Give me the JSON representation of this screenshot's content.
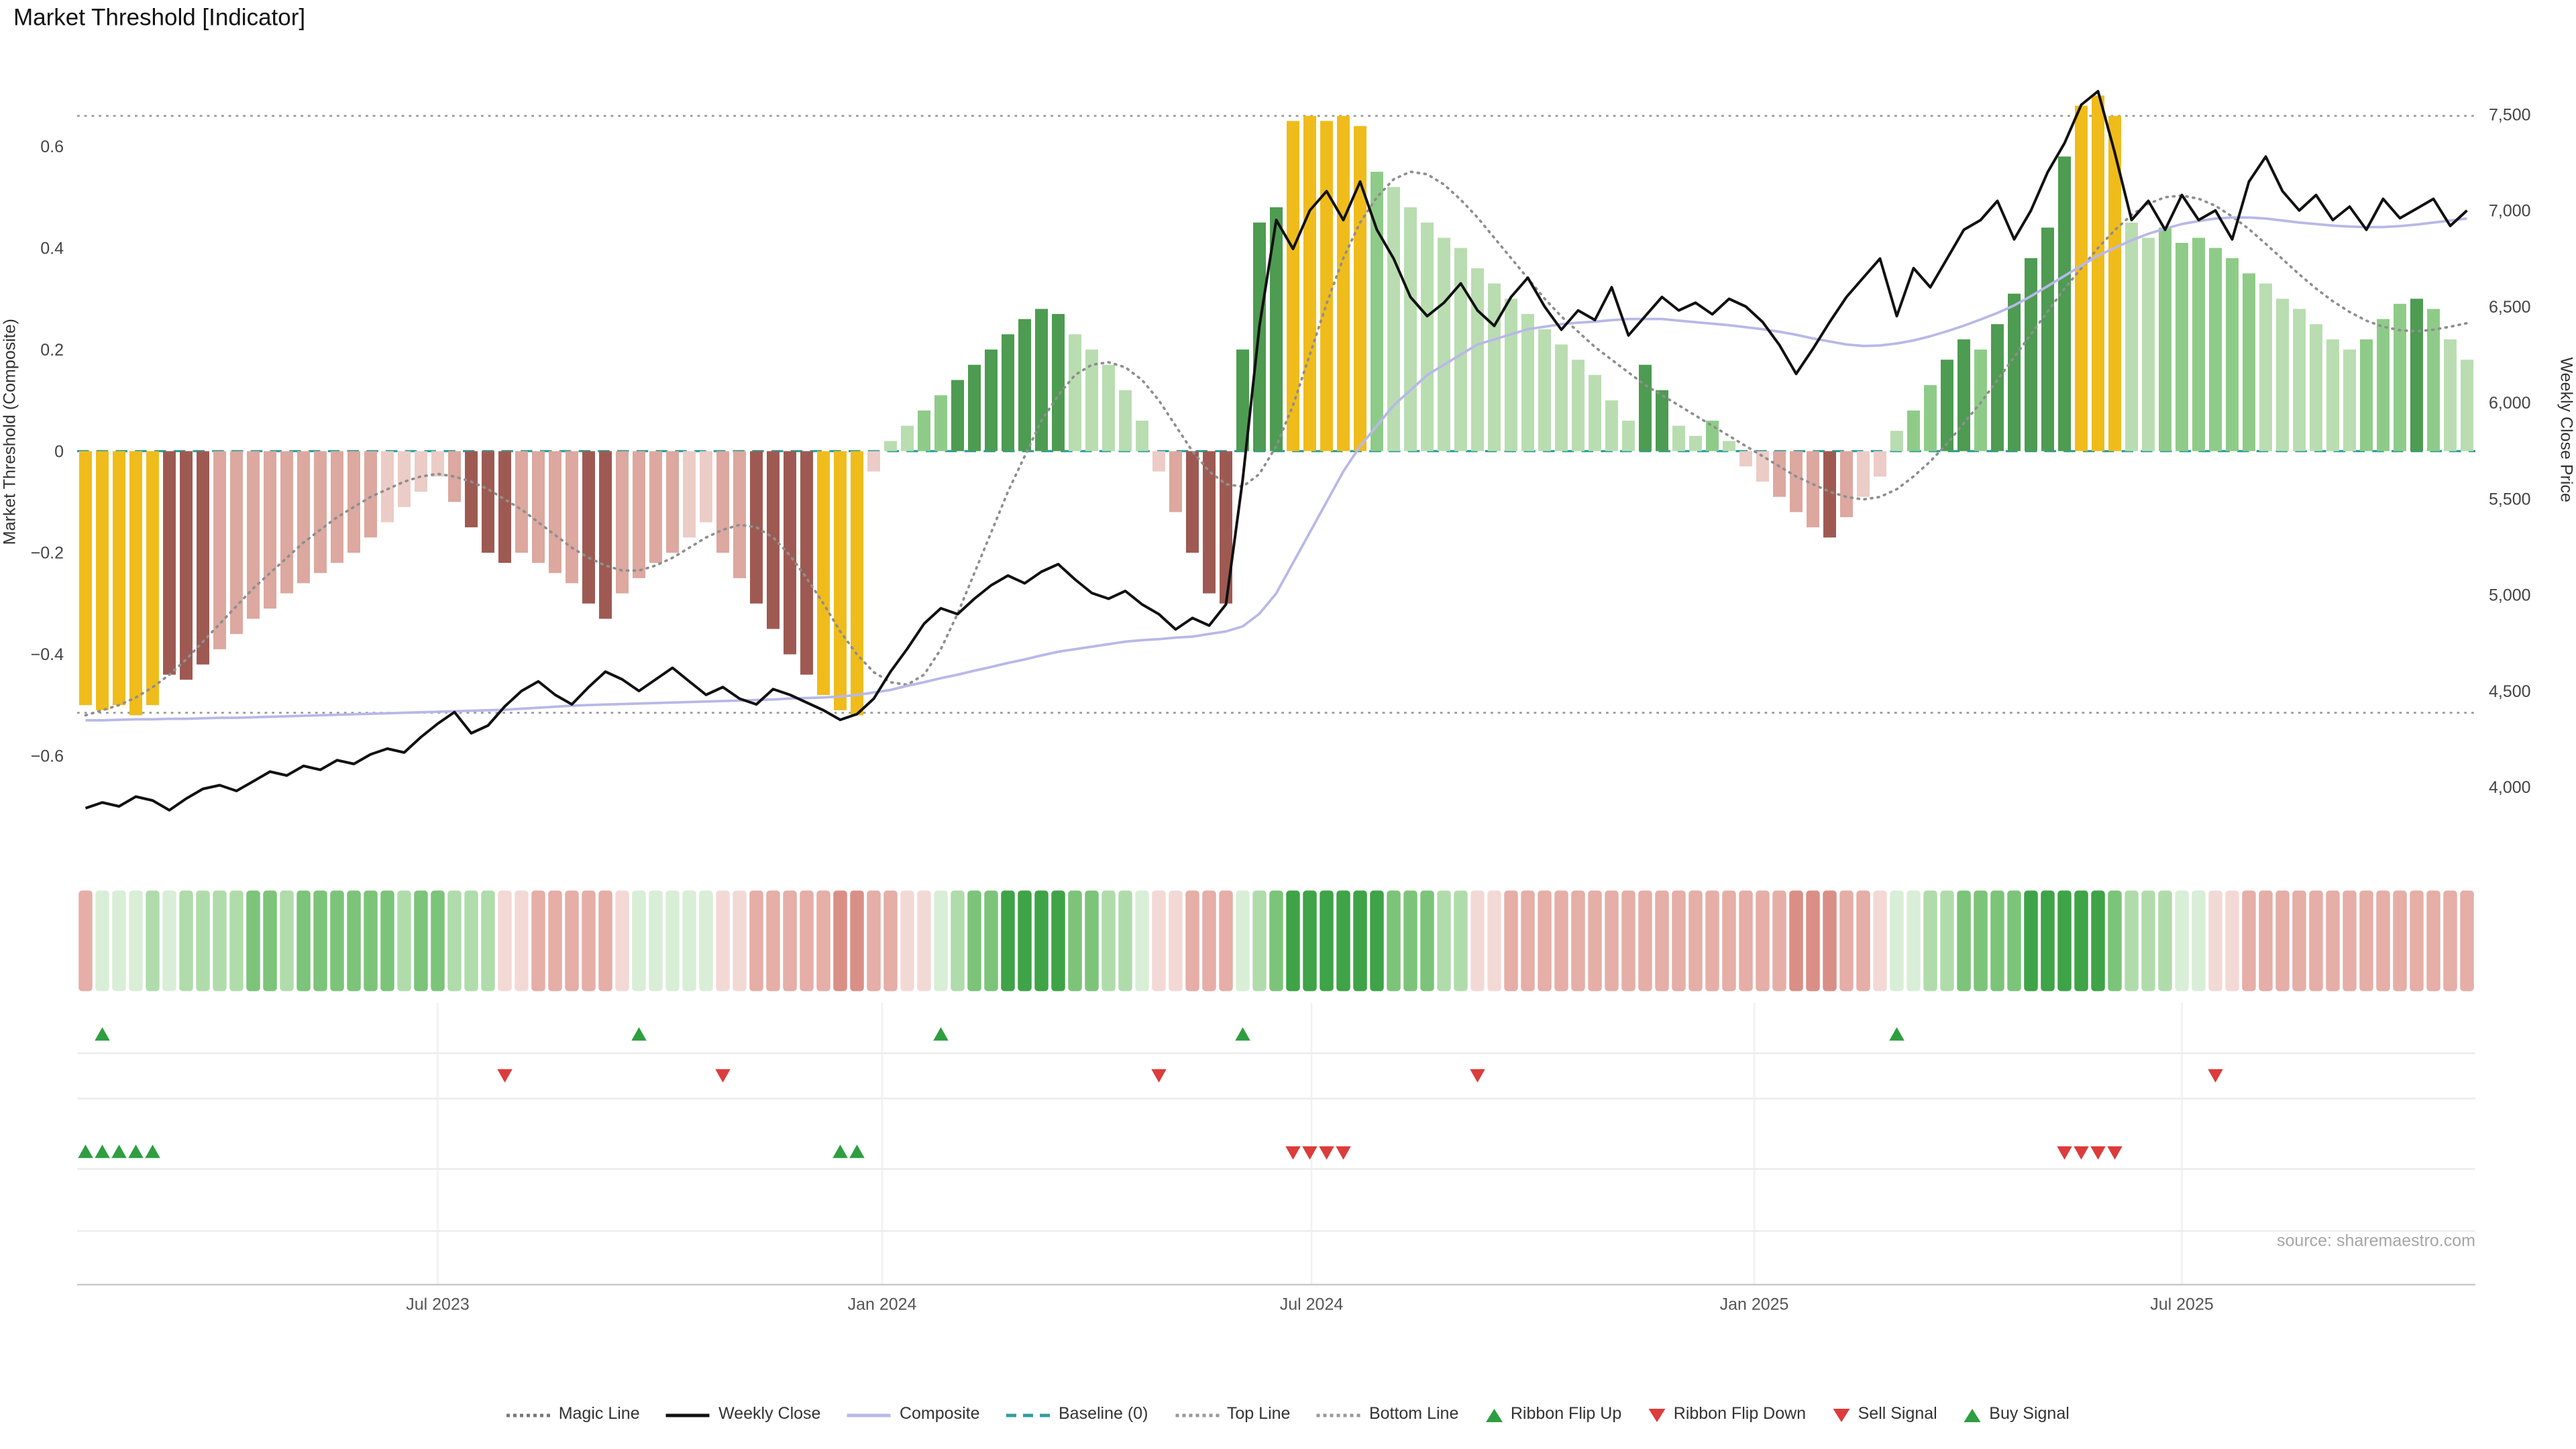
{
  "title": "Market Threshold [Indicator]",
  "source": "source: sharemaestro.com",
  "palette": {
    "bar": {
      "Y": "#f0bc1c",
      "DR": "#9e5a52",
      "MP": "#dca89f",
      "LP": "#ecccc6",
      "LG": "#b9ddb1",
      "MG": "#8fcb88",
      "DG": "#4e9b52"
    },
    "ribbon": {
      "p1": "#f3d9d5",
      "p2": "#e5aea7",
      "p3": "#d98f86",
      "g1": "#d9eed6",
      "g2": "#b0dcab",
      "g3": "#7cc47a",
      "g4": "#3fa347"
    },
    "lines": {
      "weekly_close": "#111111",
      "composite": "#b8b8e8",
      "magic": "#8f8f8f",
      "baseline": "#2f9e9e",
      "top_bottom": "#9a9a9a"
    },
    "signals": {
      "up": "#2e9e40",
      "down": "#dc3c3c"
    }
  },
  "legend": {
    "items": [
      {
        "label": "Magic Line",
        "glyph": "dotted",
        "color": "#777777"
      },
      {
        "label": "Weekly Close",
        "glyph": "solid",
        "color": "#111111"
      },
      {
        "label": "Composite",
        "glyph": "solid",
        "color": "#b8b8e8"
      },
      {
        "label": "Baseline (0)",
        "glyph": "dashed",
        "color": "#2f9e9e"
      },
      {
        "label": "Top Line",
        "glyph": "dotted",
        "color": "#999999"
      },
      {
        "label": "Bottom Line",
        "glyph": "dotted",
        "color": "#999999"
      },
      {
        "label": "Ribbon Flip Up",
        "glyph": "tri-up",
        "color": "#2e9e40"
      },
      {
        "label": "Ribbon Flip Down",
        "glyph": "tri-down",
        "color": "#dc3c3c"
      },
      {
        "label": "Sell Signal",
        "glyph": "tri-down",
        "color": "#dc3c3c"
      },
      {
        "label": "Buy Signal",
        "glyph": "tri-up",
        "color": "#2e9e40"
      }
    ]
  },
  "chart_data": {
    "type": "bar+line",
    "weeks": 143,
    "left_axis": {
      "label": "Market Threshold (Composite)",
      "tick_values": [
        0.6,
        0.4,
        0.2,
        0,
        -0.2,
        -0.4,
        -0.6
      ],
      "tick_labels": [
        "0.6",
        "0.4",
        "0.2",
        "0",
        "−0.2",
        "−0.4",
        "−0.6"
      ],
      "range": [
        -0.72,
        0.74
      ]
    },
    "right_axis": {
      "label": "Weekly Close Price",
      "tick_values": [
        7500,
        7000,
        6500,
        6000,
        5500,
        5000,
        4500,
        4000
      ],
      "tick_labels": [
        "7,500",
        "7,000",
        "6,500",
        "6,000",
        "5,500",
        "5,000",
        "4,500",
        "4,000"
      ]
    },
    "x_axis": {
      "tick_labels": [
        "Jul 2023",
        "Jan 2024",
        "Jul 2024",
        "Jan 2025",
        "Jul 2025"
      ],
      "tick_weeks": [
        21.5,
        48,
        73.6,
        100,
        125.5
      ]
    },
    "top_line": 0.66,
    "bottom_line": -0.515,
    "baseline": 0,
    "bars": [
      -0.5,
      -0.51,
      -0.5,
      -0.52,
      -0.5,
      -0.44,
      -0.45,
      -0.42,
      -0.39,
      -0.36,
      -0.33,
      -0.31,
      -0.28,
      -0.26,
      -0.24,
      -0.22,
      -0.2,
      -0.17,
      -0.14,
      -0.11,
      -0.08,
      -0.05,
      -0.1,
      -0.15,
      -0.2,
      -0.22,
      -0.2,
      -0.22,
      -0.24,
      -0.26,
      -0.3,
      -0.33,
      -0.28,
      -0.25,
      -0.22,
      -0.2,
      -0.17,
      -0.14,
      -0.2,
      -0.25,
      -0.3,
      -0.35,
      -0.4,
      -0.44,
      -0.48,
      -0.51,
      -0.52,
      -0.04,
      0.02,
      0.05,
      0.08,
      0.11,
      0.14,
      0.17,
      0.2,
      0.23,
      0.26,
      0.28,
      0.27,
      0.23,
      0.2,
      0.17,
      0.12,
      0.06,
      -0.04,
      -0.12,
      -0.2,
      -0.28,
      -0.3,
      0.2,
      0.45,
      0.48,
      0.65,
      0.66,
      0.65,
      0.66,
      0.64,
      0.55,
      0.52,
      0.48,
      0.45,
      0.42,
      0.4,
      0.36,
      0.33,
      0.3,
      0.27,
      0.24,
      0.21,
      0.18,
      0.15,
      0.1,
      0.06,
      0.17,
      0.12,
      0.05,
      0.03,
      0.06,
      0.02,
      -0.03,
      -0.06,
      -0.09,
      -0.12,
      -0.15,
      -0.17,
      -0.13,
      -0.09,
      -0.05,
      0.04,
      0.08,
      0.13,
      0.18,
      0.22,
      0.2,
      0.25,
      0.31,
      0.38,
      0.44,
      0.58,
      0.68,
      0.7,
      0.66,
      0.45,
      0.42,
      0.44,
      0.41,
      0.42,
      0.4,
      0.38,
      0.35,
      0.33,
      0.3,
      0.28,
      0.25,
      0.22,
      0.2,
      0.22,
      0.26,
      0.29,
      0.3,
      0.28,
      0.22,
      0.18
    ],
    "bar_colors": [
      "Y",
      "Y",
      "Y",
      "Y",
      "Y",
      "DR",
      "DR",
      "DR",
      "MP",
      "MP",
      "MP",
      "MP",
      "MP",
      "MP",
      "MP",
      "MP",
      "MP",
      "MP",
      "LP",
      "LP",
      "LP",
      "LP",
      "MP",
      "DR",
      "DR",
      "DR",
      "MP",
      "MP",
      "MP",
      "MP",
      "DR",
      "DR",
      "MP",
      "MP",
      "MP",
      "MP",
      "LP",
      "LP",
      "MP",
      "MP",
      "DR",
      "DR",
      "DR",
      "DR",
      "Y",
      "Y",
      "Y",
      "LP",
      "LG",
      "LG",
      "MG",
      "MG",
      "DG",
      "DG",
      "DG",
      "DG",
      "DG",
      "DG",
      "DG",
      "LG",
      "LG",
      "LG",
      "LG",
      "LG",
      "LP",
      "MP",
      "DR",
      "DR",
      "DR",
      "DG",
      "DG",
      "DG",
      "Y",
      "Y",
      "Y",
      "Y",
      "Y",
      "MG",
      "LG",
      "LG",
      "LG",
      "LG",
      "LG",
      "LG",
      "LG",
      "LG",
      "LG",
      "LG",
      "LG",
      "LG",
      "LG",
      "LG",
      "LG",
      "DG",
      "DG",
      "LG",
      "LG",
      "MG",
      "LG",
      "LP",
      "LP",
      "MP",
      "MP",
      "MP",
      "DR",
      "MP",
      "LP",
      "LP",
      "LG",
      "MG",
      "MG",
      "DG",
      "DG",
      "MG",
      "DG",
      "DG",
      "DG",
      "DG",
      "DG",
      "Y",
      "Y",
      "Y",
      "LG",
      "LG",
      "MG",
      "MG",
      "MG",
      "MG",
      "MG",
      "MG",
      "LG",
      "LG",
      "LG",
      "LG",
      "LG",
      "LG",
      "MG",
      "MG",
      "MG",
      "DG",
      "MG",
      "LG",
      "LG"
    ],
    "weekly_close": [
      3890,
      3920,
      3900,
      3950,
      3930,
      3880,
      3940,
      3990,
      4010,
      3980,
      4030,
      4080,
      4060,
      4110,
      4090,
      4140,
      4120,
      4170,
      4200,
      4180,
      4260,
      4330,
      4390,
      4280,
      4320,
      4420,
      4500,
      4550,
      4480,
      4430,
      4520,
      4600,
      4560,
      4500,
      4560,
      4620,
      4550,
      4480,
      4520,
      4460,
      4430,
      4510,
      4480,
      4440,
      4400,
      4350,
      4380,
      4460,
      4600,
      4720,
      4850,
      4930,
      4900,
      4980,
      5050,
      5100,
      5060,
      5120,
      5160,
      5080,
      5010,
      4980,
      5020,
      4950,
      4900,
      4820,
      4880,
      4840,
      4950,
      5600,
      6400,
      6950,
      6800,
      7000,
      7100,
      6950,
      7150,
      6900,
      6750,
      6550,
      6450,
      6520,
      6620,
      6480,
      6400,
      6550,
      6650,
      6500,
      6380,
      6480,
      6430,
      6600,
      6350,
      6450,
      6550,
      6480,
      6520,
      6460,
      6540,
      6500,
      6420,
      6300,
      6150,
      6280,
      6420,
      6550,
      6650,
      6750,
      6450,
      6700,
      6600,
      6750,
      6900,
      6950,
      7050,
      6850,
      7000,
      7200,
      7350,
      7550,
      7620,
      7300,
      6950,
      7050,
      6900,
      7080,
      6950,
      7000,
      6850,
      7150,
      7280,
      7100,
      7000,
      7080,
      6950,
      7020,
      6900,
      7060,
      6960,
      7010,
      7060,
      6920,
      7000
    ],
    "composite": [
      -0.53,
      -0.53,
      -0.529,
      -0.528,
      -0.528,
      -0.527,
      -0.527,
      -0.526,
      -0.525,
      -0.525,
      -0.524,
      -0.523,
      -0.522,
      -0.521,
      -0.52,
      -0.519,
      -0.518,
      -0.517,
      -0.516,
      -0.515,
      -0.514,
      -0.513,
      -0.512,
      -0.511,
      -0.51,
      -0.509,
      -0.507,
      -0.505,
      -0.503,
      -0.501,
      -0.5,
      -0.499,
      -0.498,
      -0.497,
      -0.496,
      -0.495,
      -0.494,
      -0.493,
      -0.492,
      -0.491,
      -0.49,
      -0.489,
      -0.487,
      -0.486,
      -0.485,
      -0.483,
      -0.48,
      -0.475,
      -0.47,
      -0.462,
      -0.455,
      -0.447,
      -0.44,
      -0.432,
      -0.425,
      -0.417,
      -0.41,
      -0.402,
      -0.395,
      -0.39,
      -0.385,
      -0.38,
      -0.375,
      -0.372,
      -0.37,
      -0.367,
      -0.365,
      -0.36,
      -0.355,
      -0.345,
      -0.32,
      -0.28,
      -0.22,
      -0.16,
      -0.1,
      -0.04,
      0.01,
      0.05,
      0.09,
      0.12,
      0.15,
      0.17,
      0.19,
      0.21,
      0.22,
      0.23,
      0.24,
      0.245,
      0.25,
      0.253,
      0.255,
      0.258,
      0.26,
      0.26,
      0.26,
      0.257,
      0.254,
      0.251,
      0.248,
      0.244,
      0.24,
      0.235,
      0.229,
      0.222,
      0.216,
      0.21,
      0.207,
      0.208,
      0.212,
      0.218,
      0.226,
      0.236,
      0.247,
      0.259,
      0.272,
      0.287,
      0.305,
      0.325,
      0.345,
      0.365,
      0.385,
      0.4,
      0.415,
      0.428,
      0.438,
      0.447,
      0.453,
      0.458,
      0.46,
      0.46,
      0.458,
      0.454,
      0.45,
      0.447,
      0.444,
      0.442,
      0.441,
      0.441,
      0.443,
      0.446,
      0.45,
      0.454,
      0.458
    ],
    "magic_line": [
      -0.52,
      -0.51,
      -0.5,
      -0.485,
      -0.465,
      -0.44,
      -0.41,
      -0.375,
      -0.34,
      -0.305,
      -0.27,
      -0.24,
      -0.21,
      -0.18,
      -0.155,
      -0.13,
      -0.11,
      -0.09,
      -0.075,
      -0.06,
      -0.05,
      -0.045,
      -0.05,
      -0.06,
      -0.075,
      -0.095,
      -0.115,
      -0.14,
      -0.165,
      -0.19,
      -0.21,
      -0.225,
      -0.235,
      -0.235,
      -0.225,
      -0.21,
      -0.19,
      -0.17,
      -0.155,
      -0.145,
      -0.15,
      -0.17,
      -0.205,
      -0.25,
      -0.3,
      -0.355,
      -0.4,
      -0.435,
      -0.455,
      -0.46,
      -0.44,
      -0.39,
      -0.32,
      -0.24,
      -0.16,
      -0.08,
      -0.01,
      0.06,
      0.11,
      0.15,
      0.17,
      0.175,
      0.165,
      0.14,
      0.1,
      0.05,
      0.0,
      -0.04,
      -0.065,
      -0.07,
      -0.045,
      0.01,
      0.09,
      0.19,
      0.29,
      0.38,
      0.45,
      0.5,
      0.535,
      0.55,
      0.545,
      0.525,
      0.495,
      0.46,
      0.42,
      0.38,
      0.34,
      0.3,
      0.265,
      0.235,
      0.205,
      0.18,
      0.155,
      0.13,
      0.11,
      0.09,
      0.07,
      0.05,
      0.03,
      0.01,
      -0.01,
      -0.03,
      -0.05,
      -0.065,
      -0.08,
      -0.09,
      -0.095,
      -0.09,
      -0.075,
      -0.05,
      -0.02,
      0.015,
      0.055,
      0.095,
      0.14,
      0.185,
      0.23,
      0.275,
      0.32,
      0.36,
      0.4,
      0.435,
      0.465,
      0.487,
      0.5,
      0.503,
      0.497,
      0.483,
      0.462,
      0.437,
      0.408,
      0.378,
      0.348,
      0.32,
      0.295,
      0.274,
      0.257,
      0.245,
      0.238,
      0.236,
      0.239,
      0.245,
      0.252
    ],
    "ribbon": [
      "p2",
      "g1",
      "g1",
      "g1",
      "g2",
      "g1",
      "g2",
      "g2",
      "g2",
      "g2",
      "g3",
      "g3",
      "g2",
      "g3",
      "g3",
      "g3",
      "g3",
      "g3",
      "g3",
      "g2",
      "g3",
      "g3",
      "g2",
      "g2",
      "g2",
      "p1",
      "p1",
      "p2",
      "p2",
      "p2",
      "p2",
      "p2",
      "p1",
      "g1",
      "g1",
      "g1",
      "g1",
      "g1",
      "p1",
      "p1",
      "p2",
      "p2",
      "p2",
      "p2",
      "p2",
      "p3",
      "p3",
      "p2",
      "p2",
      "p1",
      "p1",
      "g1",
      "g2",
      "g3",
      "g3",
      "g4",
      "g4",
      "g4",
      "g4",
      "g3",
      "g3",
      "g2",
      "g2",
      "g1",
      "p1",
      "p1",
      "p2",
      "p2",
      "p2",
      "g1",
      "g2",
      "g3",
      "g4",
      "g4",
      "g4",
      "g4",
      "g4",
      "g4",
      "g3",
      "g3",
      "g3",
      "g2",
      "g2",
      "p1",
      "p1",
      "p2",
      "p2",
      "p2",
      "p2",
      "p2",
      "p2",
      "p2",
      "p2",
      "p2",
      "p2",
      "p2",
      "p2",
      "p2",
      "p2",
      "p2",
      "p2",
      "p2",
      "p3",
      "p3",
      "p3",
      "p2",
      "p2",
      "p1",
      "g1",
      "g1",
      "g2",
      "g2",
      "g3",
      "g3",
      "g3",
      "g3",
      "g4",
      "g4",
      "g4",
      "g4",
      "g4",
      "g3",
      "g2",
      "g2",
      "g2",
      "g1",
      "g1",
      "p1",
      "p1",
      "p2",
      "p2",
      "p2",
      "p2",
      "p2",
      "p2",
      "p2",
      "p2",
      "p2",
      "p2",
      "p2",
      "p2",
      "p2",
      "p2"
    ],
    "signals": {
      "ribbon_flip_up_weeks": [
        1,
        33,
        51,
        69,
        108
      ],
      "ribbon_flip_down_weeks": [
        25,
        38,
        64,
        83,
        127
      ],
      "buy_signal_weeks": [
        0,
        1,
        2,
        3,
        4,
        45,
        46
      ],
      "sell_signal_weeks": [
        72,
        73,
        74,
        75,
        118,
        119,
        120,
        121
      ]
    }
  }
}
